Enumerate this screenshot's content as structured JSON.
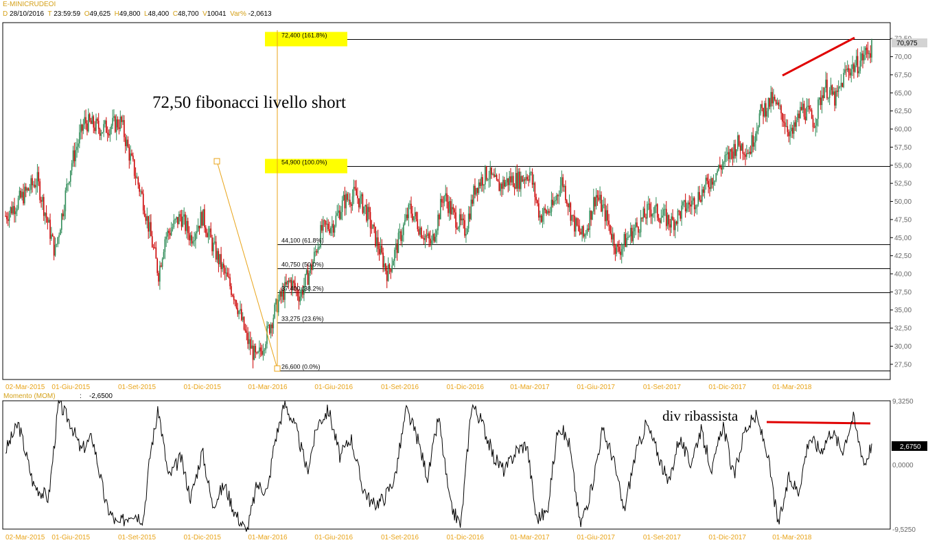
{
  "header": {
    "symbol": "E-MINICRUDEOI",
    "d_label": "D",
    "date": "28/10/2016",
    "t_label": "T",
    "time": "23:59:59",
    "o_label": "O",
    "open": "49,625",
    "h_label": "H",
    "high": "49,800",
    "l_label": "L",
    "low": "48,400",
    "c_label": "C",
    "close": "48,700",
    "v_label": "V",
    "volume": "10041",
    "var_label": "Var%",
    "var": "-2,0613"
  },
  "colors": {
    "accent": "#d4a017",
    "up": "#2e8b57",
    "down": "#cc0000",
    "fib_box": "#ffff00",
    "trend": "#e00000"
  },
  "annotations": {
    "fib_note": "72,50 fibonacci livello short",
    "div_note": "div ribassista"
  },
  "indicator": {
    "name": "Momento (MOM)",
    "value": "-2,6500",
    "last": "2,6750",
    "zero": "0,0000",
    "top": "9,3250",
    "bottom": "-9,5250"
  },
  "price_scale": {
    "last": "70,975",
    "ticks": [
      "72,50",
      "70,00",
      "67,50",
      "65,00",
      "62,50",
      "60,00",
      "57,50",
      "55,00",
      "52,50",
      "50,00",
      "47,50",
      "45,00",
      "42,50",
      "40,00",
      "37,50",
      "35,00",
      "32,50",
      "30,00",
      "27,50"
    ]
  },
  "fib_levels": [
    {
      "value": 72.4,
      "label": "72,400 (161.8%)",
      "highlight": true
    },
    {
      "value": 54.9,
      "label": "54,900 (100.0%)",
      "highlight": true
    },
    {
      "value": 44.1,
      "label": "44,100 (61.8%)",
      "highlight": false
    },
    {
      "value": 40.75,
      "label": "40,750 (50.0%)",
      "highlight": false
    },
    {
      "value": 37.4,
      "label": "37,400 (38.2%)",
      "highlight": false
    },
    {
      "value": 33.275,
      "label": "33,275 (23.6%)",
      "highlight": false
    },
    {
      "value": 26.6,
      "label": "26,600 (0.0%)",
      "highlight": false
    }
  ],
  "chart_data": [
    {
      "type": "candlestick",
      "ylim": [
        25.4,
        74.7
      ],
      "x_dates": [
        "02-Mar-2015",
        "01-Giu-2015",
        "01-Set-2015",
        "01-Dic-2015",
        "01-Mar-2016",
        "01-Giu-2016",
        "01-Set-2016",
        "01-Dic-2016",
        "01-Mar-2017",
        "01-Giu-2017",
        "01-Set-2017",
        "01-Dic-2017",
        "01-Mar-2018"
      ],
      "series": [
        {
          "role": "close",
          "points": [
            [
              "02-Mar-2015",
              48
            ],
            [
              "15-Apr-2015",
              53
            ],
            [
              "10-May-2015",
              43
            ],
            [
              "01-Giu-2015",
              55
            ],
            [
              "20-Jun-2015",
              61
            ],
            [
              "15-Jul-2015",
              60
            ],
            [
              "10-Aug-2015",
              61
            ],
            [
              "20-Aug-2015",
              57
            ],
            [
              "10-Sep-2015",
              50
            ],
            [
              "01-Oct-2015",
              40
            ],
            [
              "10-Oct-2015",
              45
            ],
            [
              "01-Nov-2015",
              48
            ],
            [
              "15-Nov-2015",
              45
            ],
            [
              "01-Dic-2015",
              48
            ],
            [
              "15-Dic-2015",
              44
            ],
            [
              "01-Jan-2016",
              40
            ],
            [
              "15-Jan-2016",
              37
            ],
            [
              "01-Feb-2016",
              31
            ],
            [
              "15-Feb-2016",
              28
            ],
            [
              "01-Mar-2016",
              32
            ],
            [
              "15-Mar-2016",
              36
            ],
            [
              "01-Apr-2016",
              39
            ],
            [
              "15-Apr-2016",
              37
            ],
            [
              "01-May-2016",
              41
            ],
            [
              "15-May-2016",
              46
            ],
            [
              "01-Giu-2016",
              47
            ],
            [
              "15-Jun-2016",
              50
            ],
            [
              "01-Jul-2016",
              51
            ],
            [
              "15-Jul-2016",
              49
            ],
            [
              "01-Aug-2016",
              44
            ],
            [
              "15-Aug-2016",
              40
            ],
            [
              "01-Set-2016",
              45
            ],
            [
              "15-Sep-2016",
              49
            ],
            [
              "01-Oct-2016",
              46
            ],
            [
              "15-Oct-2016",
              44
            ],
            [
              "01-Nov-2016",
              51
            ],
            [
              "15-Nov-2016",
              48
            ],
            [
              "01-Dic-2016",
              46
            ],
            [
              "15-Dic-2016",
              52
            ],
            [
              "01-Jan-2017",
              54
            ],
            [
              "15-Jan-2017",
              52
            ],
            [
              "01-Feb-2017",
              53
            ],
            [
              "15-Feb-2017",
              53
            ],
            [
              "01-Mar-2017",
              54
            ],
            [
              "15-Mar-2017",
              48
            ],
            [
              "01-Apr-2017",
              49
            ],
            [
              "15-Apr-2017",
              53
            ],
            [
              "01-May-2017",
              47
            ],
            [
              "15-May-2017",
              45
            ],
            [
              "01-Giu-2017",
              51
            ],
            [
              "15-Jun-2017",
              48
            ],
            [
              "01-Jul-2017",
              43
            ],
            [
              "15-Jul-2017",
              45
            ],
            [
              "01-Aug-2017",
              47
            ],
            [
              "15-Aug-2017",
              49
            ],
            [
              "01-Set-2017",
              48
            ],
            [
              "15-Sep-2017",
              47
            ],
            [
              "01-Oct-2017",
              49
            ],
            [
              "15-Oct-2017",
              50
            ],
            [
              "01-Nov-2017",
              52
            ],
            [
              "15-Nov-2017",
              54
            ],
            [
              "01-Dic-2017",
              56
            ],
            [
              "15-Dec-2017",
              58
            ],
            [
              "01-Jan-2018",
              57
            ],
            [
              "15-Jan-2018",
              62
            ],
            [
              "01-Feb-2018",
              64
            ],
            [
              "15-Feb-2018",
              62
            ],
            [
              "01-Mar-2018",
              59
            ],
            [
              "15-Mar-2018",
              63
            ],
            [
              "01-Apr-2018",
              61
            ],
            [
              "15-Apr-2018",
              66
            ],
            [
              "01-May-2018",
              64
            ],
            [
              "15-May-2018",
              68
            ],
            [
              "01-Jun-2018",
              69
            ],
            [
              "15-Jun-2018",
              71
            ]
          ]
        }
      ]
    },
    {
      "type": "line",
      "title": "Momento (MOM)",
      "ylim": [
        -9.525,
        9.325
      ],
      "x_dates": [
        "02-Mar-2015",
        "01-Giu-2015",
        "01-Set-2015",
        "01-Dic-2015",
        "01-Mar-2016",
        "01-Giu-2016",
        "01-Set-2016",
        "01-Dic-2016",
        "01-Mar-2017",
        "01-Giu-2017",
        "01-Set-2017",
        "01-Dic-2017",
        "01-Mar-2018"
      ],
      "series": [
        {
          "role": "momentum",
          "points": [
            [
              "02-Mar-2015",
              2
            ],
            [
              "20-Mar-2015",
              6
            ],
            [
              "10-Apr-2015",
              -3
            ],
            [
              "01-May-2015",
              -5
            ],
            [
              "15-May-2015",
              9
            ],
            [
              "01-Jun-2015",
              6
            ],
            [
              "15-Jun-2015",
              2
            ],
            [
              "01-Jul-2015",
              4
            ],
            [
              "20-Jul-2015",
              -6
            ],
            [
              "05-Aug-2015",
              -9
            ],
            [
              "25-Aug-2015",
              -7
            ],
            [
              "10-Sep-2015",
              -8
            ],
            [
              "20-Sep-2015",
              2
            ],
            [
              "01-Oct-2015",
              8
            ],
            [
              "15-Oct-2015",
              -2
            ],
            [
              "01-Nov-2015",
              1
            ],
            [
              "15-Nov-2015",
              -5
            ],
            [
              "01-Dec-2015",
              2
            ],
            [
              "15-Dec-2015",
              -6
            ],
            [
              "01-Jan-2016",
              -3
            ],
            [
              "15-Jan-2016",
              -7
            ],
            [
              "01-Feb-2016",
              -10
            ],
            [
              "15-Feb-2016",
              -3
            ],
            [
              "01-Mar-2016",
              -4
            ],
            [
              "10-Mar-2016",
              3
            ],
            [
              "25-Mar-2016",
              9
            ],
            [
              "10-Apr-2016",
              5
            ],
            [
              "25-Apr-2016",
              -1
            ],
            [
              "10-May-2016",
              6
            ],
            [
              "25-May-2016",
              8
            ],
            [
              "10-Jun-2016",
              1
            ],
            [
              "25-Jun-2016",
              4
            ],
            [
              "10-Jul-2016",
              -3
            ],
            [
              "25-Jul-2016",
              -6
            ],
            [
              "10-Aug-2016",
              -5
            ],
            [
              "25-Aug-2016",
              -2
            ],
            [
              "10-Sep-2016",
              8
            ],
            [
              "25-Sep-2016",
              4
            ],
            [
              "10-Oct-2016",
              -2
            ],
            [
              "25-Oct-2016",
              7
            ],
            [
              "10-Nov-2016",
              -6
            ],
            [
              "25-Nov-2016",
              -9
            ],
            [
              "10-Dec-2016",
              9
            ],
            [
              "25-Dec-2016",
              6
            ],
            [
              "10-Jan-2017",
              1
            ],
            [
              "25-Jan-2017",
              -1
            ],
            [
              "10-Feb-2017",
              2
            ],
            [
              "25-Feb-2017",
              3
            ],
            [
              "10-Mar-2017",
              -8
            ],
            [
              "25-Mar-2017",
              -7
            ],
            [
              "10-Apr-2017",
              6
            ],
            [
              "25-Apr-2017",
              3
            ],
            [
              "10-May-2017",
              -9
            ],
            [
              "25-May-2017",
              -4
            ],
            [
              "10-Jun-2017",
              5
            ],
            [
              "25-Jun-2017",
              1
            ],
            [
              "10-Jul-2017",
              -7
            ],
            [
              "25-Jul-2017",
              1
            ],
            [
              "10-Aug-2017",
              6
            ],
            [
              "25-Aug-2017",
              2
            ],
            [
              "10-Sep-2017",
              -3
            ],
            [
              "25-Sep-2017",
              4
            ],
            [
              "10-Oct-2017",
              0
            ],
            [
              "25-Oct-2017",
              5
            ],
            [
              "10-Nov-2017",
              -1
            ],
            [
              "25-Nov-2017",
              6
            ],
            [
              "10-Dec-2017",
              -2
            ],
            [
              "25-Dec-2017",
              5
            ],
            [
              "10-Jan-2018",
              7
            ],
            [
              "25-Jan-2018",
              2
            ],
            [
              "10-Feb-2018",
              -9
            ],
            [
              "25-Feb-2018",
              -2
            ],
            [
              "10-Mar-2018",
              -4
            ],
            [
              "25-Mar-2018",
              4
            ],
            [
              "10-Apr-2018",
              2
            ],
            [
              "25-Apr-2018",
              5
            ],
            [
              "10-May-2018",
              2
            ],
            [
              "25-May-2018",
              7
            ],
            [
              "10-Jun-2018",
              0
            ],
            [
              "20-Jun-2018",
              3
            ]
          ]
        }
      ]
    }
  ]
}
